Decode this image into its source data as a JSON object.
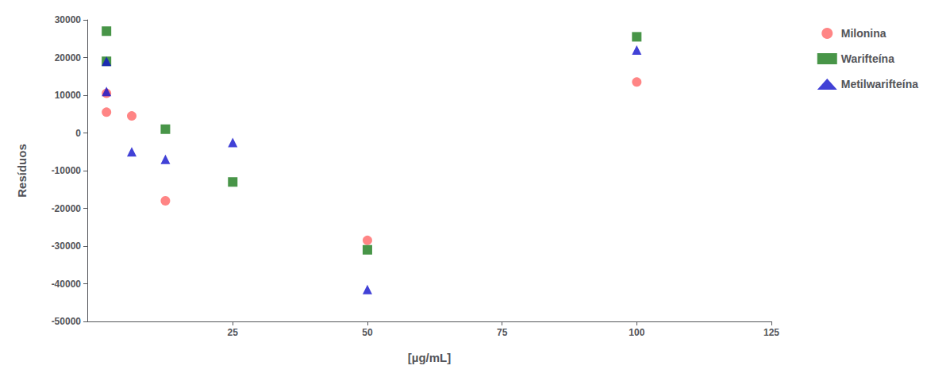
{
  "chart_data": {
    "type": "scatter",
    "xlabel": "[µg/mL]",
    "ylabel": "Resíduos",
    "xlim": [
      -2,
      125
    ],
    "xticks": [
      25,
      50,
      75,
      100,
      125
    ],
    "ylim": [
      -50000,
      30000
    ],
    "yticks": [
      -50000,
      -40000,
      -30000,
      -20000,
      -10000,
      0,
      10000,
      20000,
      30000
    ],
    "grid": false,
    "legend": "right",
    "series": [
      {
        "name": "Milonina",
        "color": "#FF6666",
        "marker": "circle",
        "x": [
          1.5625,
          1.5625,
          6.25,
          12.5,
          50,
          100
        ],
        "values": [
          5500,
          10500,
          4500,
          -18000,
          -28500,
          13500
        ]
      },
      {
        "name": "Warifteína",
        "color": "#1A7A1A",
        "marker": "square",
        "x": [
          1.5625,
          1.5625,
          12.5,
          25,
          50,
          100
        ],
        "values": [
          27000,
          19000,
          1000,
          -13000,
          -31000,
          25500
        ]
      },
      {
        "name": "Metilwarifteína",
        "color": "#1111CC",
        "marker": "triangle",
        "x": [
          1.5625,
          1.5625,
          6.25,
          12.5,
          25,
          50,
          100
        ],
        "values": [
          19000,
          11000,
          -5000,
          -7000,
          -2500,
          -41500,
          22000
        ]
      }
    ]
  }
}
